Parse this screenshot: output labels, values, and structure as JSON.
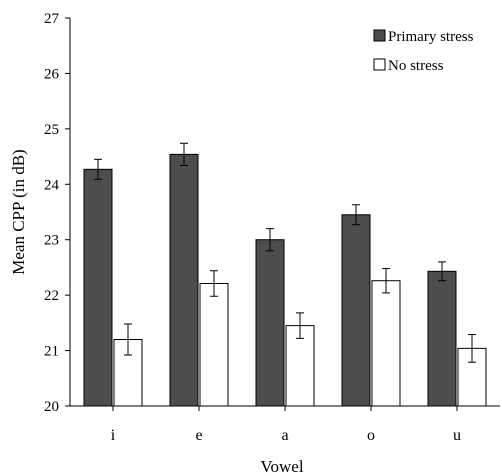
{
  "chart_data": {
    "type": "bar",
    "categories": [
      "i",
      "e",
      "a",
      "o",
      "u"
    ],
    "series": [
      {
        "name": "Primary stress",
        "color": "#4d4d4d",
        "values": [
          24.27,
          24.54,
          23.0,
          23.45,
          22.43
        ],
        "errors": [
          0.18,
          0.2,
          0.2,
          0.18,
          0.17
        ]
      },
      {
        "name": "No stress",
        "color": "#ffffff",
        "values": [
          21.2,
          22.21,
          21.45,
          22.26,
          21.04
        ],
        "errors": [
          0.28,
          0.23,
          0.23,
          0.22,
          0.25
        ]
      }
    ],
    "title": "",
    "xlabel": "Vowel",
    "ylabel": "Mean CPP (in dB)",
    "ylim": [
      20,
      27
    ],
    "yticks": [
      "20",
      "21",
      "22",
      "23",
      "24",
      "25",
      "26",
      "27"
    ],
    "grid": false,
    "legend_position": "top-right"
  }
}
